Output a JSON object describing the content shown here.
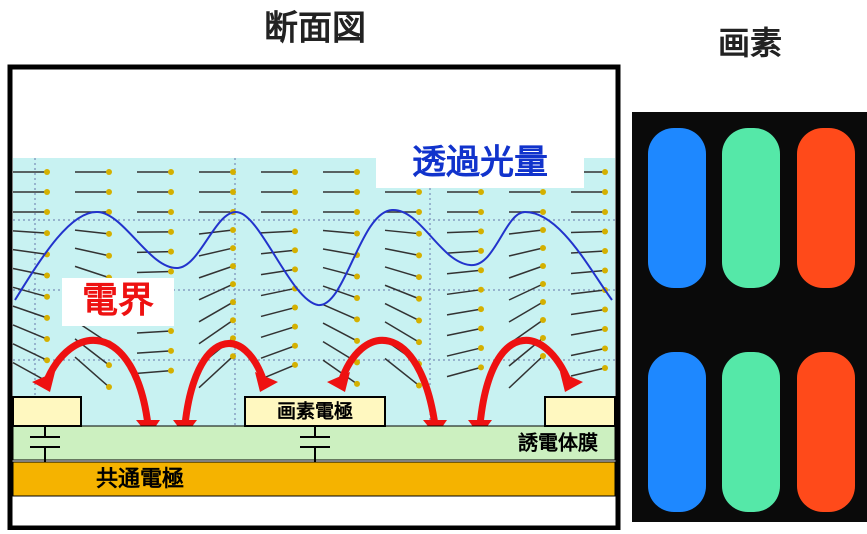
{
  "header": {
    "title": "断面図",
    "pixel_title": "画素"
  },
  "labels": {
    "transmission": "透過光量",
    "field": "電界",
    "pixel_electrode": "画素電極",
    "dielectric": "誘電体膜",
    "common_electrode": "共通電極"
  }
}
